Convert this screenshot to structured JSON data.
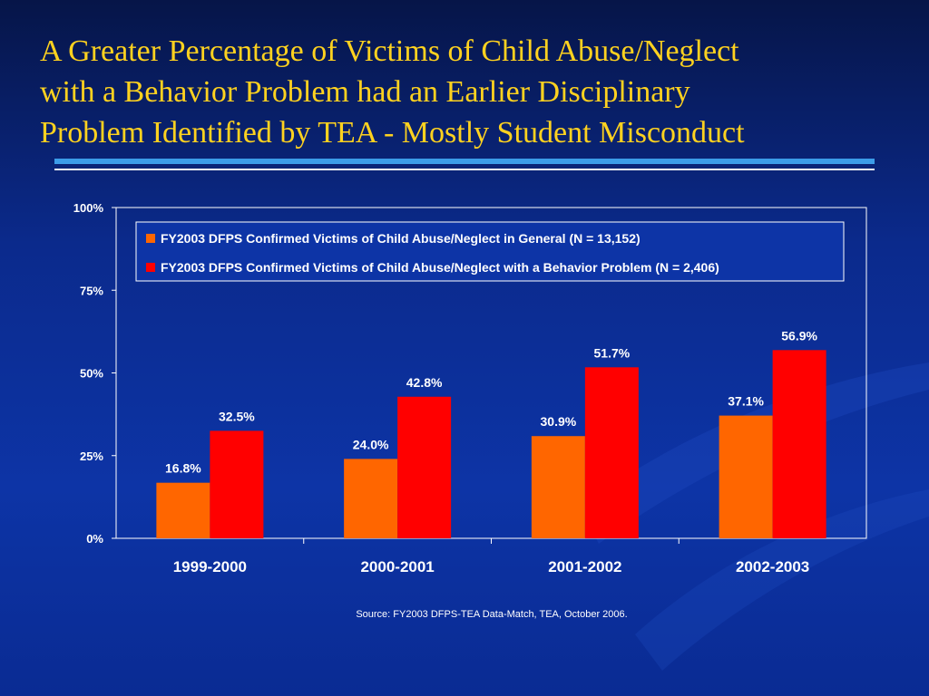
{
  "slide": {
    "title_lines": [
      "A Greater Percentage of Victims of Child Abuse/Neglect",
      "with a Behavior Problem had an Earlier Disciplinary",
      "Problem Identified by TEA - Mostly Student Misconduct"
    ],
    "source": "Source: FY2003 DFPS-TEA Data-Match, TEA, October 2006."
  },
  "colors": {
    "title": "#ffd21f",
    "series1": "#ff6600",
    "series2": "#ff0000",
    "label_text": "#ffffff"
  },
  "chart_data": {
    "type": "bar",
    "categories": [
      "1999-2000",
      "2000-2001",
      "2001-2002",
      "2002-2003"
    ],
    "series": [
      {
        "name": "FY2003 DFPS Confirmed Victims of Child Abuse/Neglect in General (N = 13,152)",
        "values": [
          16.8,
          24.0,
          30.9,
          37.1
        ],
        "labels": [
          "16.8%",
          "24.0%",
          "30.9%",
          "37.1%"
        ],
        "color": "#ff6600"
      },
      {
        "name": "FY2003 DFPS Confirmed Victims of Child Abuse/Neglect with a Behavior Problem (N = 2,406)",
        "values": [
          32.5,
          42.8,
          51.7,
          56.9
        ],
        "labels": [
          "32.5%",
          "42.8%",
          "51.7%",
          "56.9%"
        ],
        "color": "#ff0000"
      }
    ],
    "title": "",
    "xlabel": "",
    "ylabel": "",
    "ylim": [
      0,
      100
    ],
    "yticks": [
      "0%",
      "25%",
      "50%",
      "75%",
      "100%"
    ],
    "grid": false,
    "legend_position": "top"
  }
}
